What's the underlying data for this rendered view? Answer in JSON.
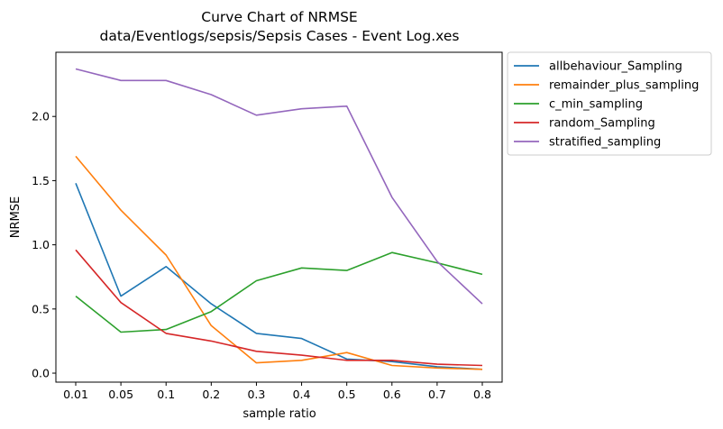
{
  "chart_data": {
    "type": "line",
    "title": "Curve Chart of NRMSE",
    "subtitle": "data/Eventlogs/sepsis/Sepsis Cases - Event Log.xes",
    "xlabel": "sample ratio",
    "ylabel": "NRMSE",
    "categories": [
      "0.01",
      "0.05",
      "0.1",
      "0.2",
      "0.3",
      "0.4",
      "0.5",
      "0.6",
      "0.7",
      "0.8"
    ],
    "ylim": [
      -0.07,
      2.5
    ],
    "yticks": [
      "0.0",
      "0.5",
      "1.0",
      "1.5",
      "2.0"
    ],
    "ytick_values": [
      0,
      0.5,
      1.0,
      1.5,
      2.0
    ],
    "grid": false,
    "legend_position": "outside-upper-right",
    "series": [
      {
        "name": "allbehaviour_Sampling",
        "color": "#1f77b4",
        "values": [
          1.48,
          0.6,
          0.83,
          0.54,
          0.31,
          0.27,
          0.11,
          0.09,
          0.05,
          0.03
        ]
      },
      {
        "name": "remainder_plus_sampling",
        "color": "#ff7f0e",
        "values": [
          1.69,
          1.27,
          0.92,
          0.37,
          0.08,
          0.1,
          0.16,
          0.06,
          0.04,
          0.03
        ]
      },
      {
        "name": "c_min_sampling",
        "color": "#2ca02c",
        "values": [
          0.6,
          0.32,
          0.34,
          0.48,
          0.72,
          0.82,
          0.8,
          0.94,
          0.86,
          0.77
        ]
      },
      {
        "name": "random_Sampling",
        "color": "#d62728",
        "values": [
          0.96,
          0.55,
          0.31,
          0.25,
          0.17,
          0.14,
          0.1,
          0.1,
          0.07,
          0.06
        ]
      },
      {
        "name": "stratified_sampling",
        "color": "#9467bd",
        "values": [
          2.37,
          2.28,
          2.28,
          2.17,
          2.01,
          2.06,
          2.08,
          1.37,
          0.87,
          0.54
        ]
      }
    ]
  }
}
